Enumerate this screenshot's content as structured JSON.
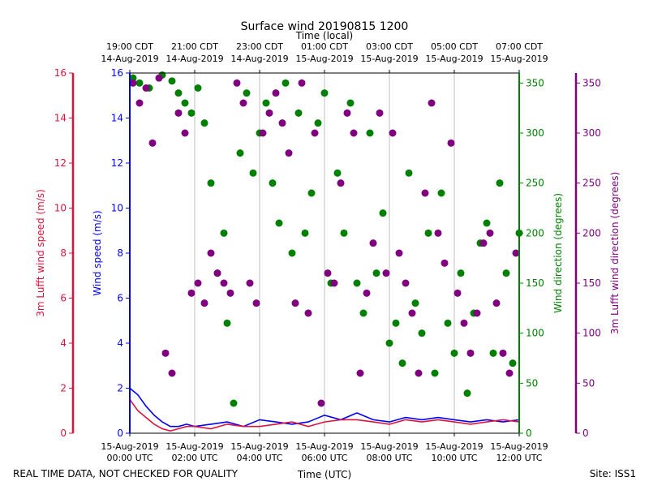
{
  "title": "Surface wind 20190815 1200",
  "footer_left": "REAL TIME DATA, NOT CHECKED FOR QUALITY",
  "footer_right": "Site: ISS1",
  "colors": {
    "wind_speed": "#0000ff",
    "lufft_speed": "#dc143c",
    "wind_dir": "#008000",
    "lufft_dir": "#800080",
    "grid": "#b0b0b0"
  },
  "chart_data": {
    "type": "scatter",
    "xlabel_bottom": "Time (UTC)",
    "xlabel_top": "Time (local)",
    "xlim_utc_hours": [
      0,
      12
    ],
    "x_ticks_bottom": [
      {
        "hour": 0,
        "line1": "15-Aug-2019",
        "line2": "00:00 UTC"
      },
      {
        "hour": 2,
        "line1": "15-Aug-2019",
        "line2": "02:00 UTC"
      },
      {
        "hour": 4,
        "line1": "15-Aug-2019",
        "line2": "04:00 UTC"
      },
      {
        "hour": 6,
        "line1": "15-Aug-2019",
        "line2": "06:00 UTC"
      },
      {
        "hour": 8,
        "line1": "15-Aug-2019",
        "line2": "08:00 UTC"
      },
      {
        "hour": 10,
        "line1": "15-Aug-2019",
        "line2": "10:00 UTC"
      },
      {
        "hour": 12,
        "line1": "15-Aug-2019",
        "line2": "12:00 UTC"
      }
    ],
    "x_ticks_top": [
      {
        "hour": 0,
        "line1": "19:00 CDT",
        "line2": "14-Aug-2019"
      },
      {
        "hour": 2,
        "line1": "21:00 CDT",
        "line2": "14-Aug-2019"
      },
      {
        "hour": 4,
        "line1": "23:00 CDT",
        "line2": "14-Aug-2019"
      },
      {
        "hour": 6,
        "line1": "01:00 CDT",
        "line2": "15-Aug-2019"
      },
      {
        "hour": 8,
        "line1": "03:00 CDT",
        "line2": "15-Aug-2019"
      },
      {
        "hour": 10,
        "line1": "05:00 CDT",
        "line2": "15-Aug-2019"
      },
      {
        "hour": 12,
        "line1": "07:00 CDT",
        "line2": "15-Aug-2019"
      }
    ],
    "axes": {
      "lufft_speed": {
        "label": "3m Lufft wind speed (m/s)",
        "ylim": [
          0,
          16
        ],
        "ticks": [
          0,
          2,
          4,
          6,
          8,
          10,
          12,
          14,
          16
        ]
      },
      "wind_speed": {
        "label": "Wind speed (m/s)",
        "ylim": [
          0,
          16
        ],
        "ticks": [
          0,
          2,
          4,
          6,
          8,
          10,
          12,
          14,
          16
        ]
      },
      "wind_dir": {
        "label": "Wind direction (degrees)",
        "ylim": [
          0,
          360
        ],
        "ticks": [
          0,
          50,
          100,
          150,
          200,
          250,
          300,
          350
        ]
      },
      "lufft_dir": {
        "label": "3m Lufft wind direction (degrees)",
        "ylim": [
          0,
          360
        ],
        "ticks": [
          0,
          50,
          100,
          150,
          200,
          250,
          300,
          350
        ]
      }
    },
    "grid": true,
    "series": [
      {
        "key": "wind_speed",
        "style": "line",
        "x": [
          0,
          0.25,
          0.5,
          0.75,
          1,
          1.25,
          1.5,
          1.75,
          2,
          2.5,
          3,
          3.5,
          4,
          4.5,
          5,
          5.5,
          6,
          6.5,
          7,
          7.5,
          8,
          8.5,
          9,
          9.5,
          10,
          10.5,
          11,
          11.5,
          12
        ],
        "y": [
          2.0,
          1.7,
          1.2,
          0.8,
          0.5,
          0.3,
          0.3,
          0.4,
          0.3,
          0.4,
          0.5,
          0.3,
          0.6,
          0.5,
          0.4,
          0.5,
          0.8,
          0.6,
          0.9,
          0.6,
          0.5,
          0.7,
          0.6,
          0.7,
          0.6,
          0.5,
          0.6,
          0.5,
          0.6
        ]
      },
      {
        "key": "lufft_speed",
        "style": "line",
        "x": [
          0,
          0.25,
          0.5,
          0.75,
          1,
          1.25,
          1.5,
          1.75,
          2,
          2.5,
          3,
          3.5,
          4,
          4.5,
          5,
          5.5,
          6,
          6.5,
          7,
          7.5,
          8,
          8.5,
          9,
          9.5,
          10,
          10.5,
          11,
          11.5,
          12
        ],
        "y": [
          1.5,
          1.0,
          0.7,
          0.4,
          0.2,
          0.1,
          0.2,
          0.3,
          0.3,
          0.2,
          0.4,
          0.3,
          0.3,
          0.4,
          0.5,
          0.3,
          0.5,
          0.6,
          0.6,
          0.5,
          0.4,
          0.6,
          0.5,
          0.6,
          0.5,
          0.4,
          0.5,
          0.6,
          0.5
        ]
      },
      {
        "key": "wind_dir",
        "style": "points",
        "x": [
          0.1,
          0.3,
          0.6,
          1.0,
          1.3,
          1.5,
          1.7,
          1.9,
          2.1,
          2.3,
          2.5,
          2.7,
          2.9,
          3.0,
          3.2,
          3.4,
          3.6,
          3.8,
          4.0,
          4.2,
          4.4,
          4.6,
          4.8,
          5.0,
          5.2,
          5.4,
          5.6,
          5.8,
          6.0,
          6.2,
          6.4,
          6.6,
          6.8,
          7.0,
          7.2,
          7.4,
          7.6,
          7.8,
          8.0,
          8.2,
          8.4,
          8.6,
          8.8,
          9.0,
          9.2,
          9.4,
          9.6,
          9.8,
          10.0,
          10.2,
          10.4,
          10.6,
          10.8,
          11.0,
          11.2,
          11.4,
          11.6,
          11.8,
          12.0
        ],
        "y": [
          355,
          350,
          345,
          358,
          352,
          340,
          330,
          320,
          345,
          310,
          250,
          160,
          200,
          110,
          30,
          280,
          340,
          260,
          300,
          330,
          250,
          210,
          350,
          180,
          320,
          200,
          240,
          310,
          340,
          150,
          260,
          200,
          330,
          150,
          120,
          300,
          160,
          220,
          90,
          110,
          70,
          260,
          130,
          100,
          200,
          60,
          240,
          110,
          80,
          160,
          40,
          120,
          190,
          210,
          80,
          250,
          160,
          70,
          200
        ]
      },
      {
        "key": "lufft_dir",
        "style": "points",
        "x": [
          0.1,
          0.3,
          0.5,
          0.7,
          0.9,
          1.1,
          1.3,
          1.5,
          1.7,
          1.9,
          2.1,
          2.3,
          2.5,
          2.7,
          2.9,
          3.1,
          3.3,
          3.5,
          3.7,
          3.9,
          4.1,
          4.3,
          4.5,
          4.7,
          4.9,
          5.1,
          5.3,
          5.5,
          5.7,
          5.9,
          6.1,
          6.3,
          6.5,
          6.7,
          6.9,
          7.1,
          7.3,
          7.5,
          7.7,
          7.9,
          8.1,
          8.3,
          8.5,
          8.7,
          8.9,
          9.1,
          9.3,
          9.5,
          9.7,
          9.9,
          10.1,
          10.3,
          10.5,
          10.7,
          10.9,
          11.1,
          11.3,
          11.5,
          11.7,
          11.9
        ],
        "y": [
          350,
          330,
          345,
          290,
          355,
          80,
          60,
          320,
          300,
          140,
          150,
          130,
          180,
          160,
          150,
          140,
          350,
          330,
          150,
          130,
          300,
          320,
          340,
          310,
          280,
          130,
          350,
          120,
          300,
          30,
          160,
          150,
          250,
          320,
          300,
          60,
          140,
          190,
          320,
          160,
          300,
          180,
          150,
          120,
          60,
          240,
          330,
          200,
          170,
          290,
          140,
          110,
          80,
          120,
          190,
          200,
          130,
          80,
          60,
          180
        ]
      }
    ]
  }
}
